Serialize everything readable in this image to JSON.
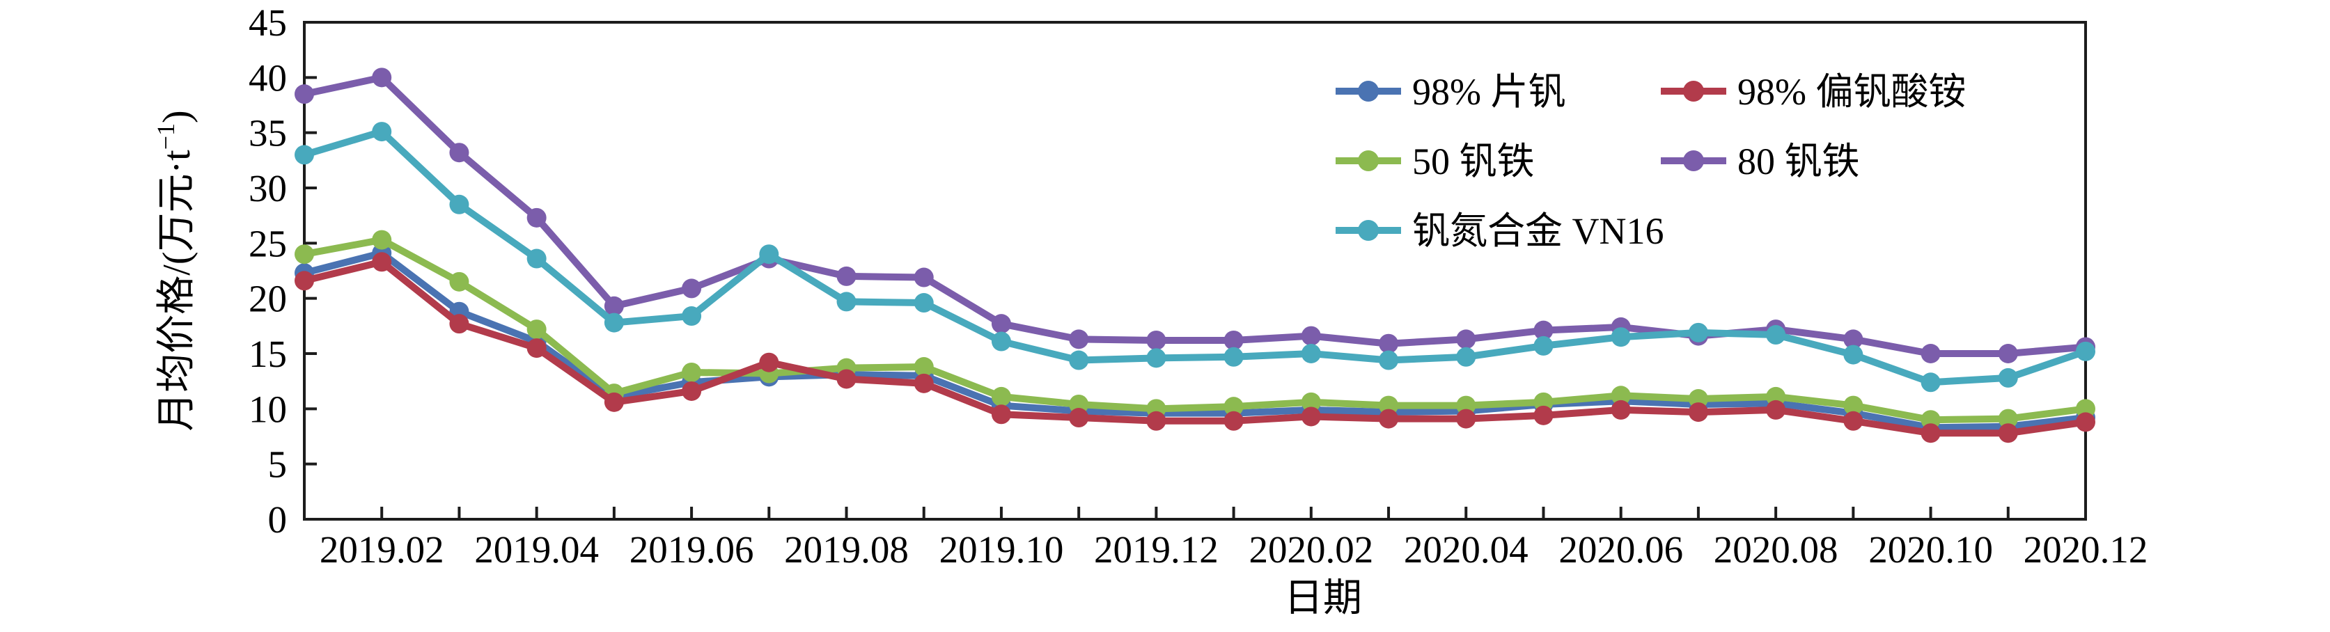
{
  "chart_data": {
    "type": "line",
    "xlabel": "日期",
    "ylabel": "月均价格/(万元·t⁻¹)",
    "ylabel_parts": {
      "main": "月均价格/(万元·t",
      "sup": "−1",
      "close": ")"
    },
    "ylim": [
      0,
      45
    ],
    "ytick_step": 5,
    "ytick_labels": [
      "0",
      "5",
      "10",
      "15",
      "20",
      "25",
      "30",
      "35",
      "40",
      "45"
    ],
    "grid": false,
    "legend_position": "inside-upper-right",
    "axis_color": "#1c1c1c",
    "x": [
      "2019.01",
      "2019.02",
      "2019.03",
      "2019.04",
      "2019.05",
      "2019.06",
      "2019.07",
      "2019.08",
      "2019.09",
      "2019.10",
      "2019.11",
      "2019.12",
      "2020.01",
      "2020.02",
      "2020.03",
      "2020.04",
      "2020.05",
      "2020.06",
      "2020.07",
      "2020.08",
      "2020.09",
      "2020.10",
      "2020.11",
      "2020.12"
    ],
    "x_labels_shown_every": "odd months (2019.02, 2019.04, … 2020.12)",
    "series": [
      {
        "id": "flake-v2o5-98",
        "name": "98% 片钒",
        "color": "#4a73b2",
        "values": [
          22.3,
          24.1,
          18.8,
          16.1,
          11.1,
          12.4,
          12.9,
          13.1,
          13.0,
          10.3,
          9.8,
          9.6,
          9.6,
          9.9,
          9.7,
          9.8,
          10.4,
          10.7,
          10.4,
          10.5,
          9.6,
          8.3,
          8.4,
          9.2
        ]
      },
      {
        "id": "ammonium-metavanadate-98",
        "name": "98% 偏钒酸铵",
        "color": "#b23b4b",
        "values": [
          21.6,
          23.3,
          17.7,
          15.5,
          10.6,
          11.6,
          14.2,
          12.7,
          12.3,
          9.5,
          9.2,
          8.9,
          8.9,
          9.3,
          9.1,
          9.1,
          9.4,
          9.9,
          9.7,
          9.9,
          8.9,
          7.8,
          7.8,
          8.8
        ]
      },
      {
        "id": "fev-50",
        "name": "50 钒铁",
        "color": "#8cba50",
        "values": [
          24.0,
          25.3,
          21.5,
          17.2,
          11.4,
          13.3,
          13.2,
          13.7,
          13.8,
          11.1,
          10.4,
          10.0,
          10.2,
          10.6,
          10.3,
          10.3,
          10.6,
          11.2,
          10.9,
          11.1,
          10.3,
          9.0,
          9.1,
          10.0
        ]
      },
      {
        "id": "fev-80",
        "name": "80 钒铁",
        "color": "#7b5dab",
        "values": [
          38.5,
          40.0,
          33.2,
          27.3,
          19.3,
          20.9,
          23.6,
          22.0,
          21.9,
          17.7,
          16.3,
          16.2,
          16.2,
          16.6,
          15.9,
          16.3,
          17.1,
          17.4,
          16.6,
          17.2,
          16.3,
          15.0,
          15.0,
          15.6
        ]
      },
      {
        "id": "vn16-alloy",
        "name": "钒氮合金 VN16",
        "color": "#48a9bd",
        "values": [
          33.0,
          35.1,
          28.5,
          23.6,
          17.8,
          18.4,
          24.0,
          19.7,
          19.6,
          16.1,
          14.4,
          14.6,
          14.7,
          15.0,
          14.4,
          14.7,
          15.7,
          16.5,
          16.9,
          16.7,
          14.9,
          12.4,
          12.8,
          15.2
        ]
      }
    ],
    "draw_order": [
      0,
      2,
      1,
      3,
      4
    ],
    "legend_grid": [
      [
        0,
        1
      ],
      [
        2,
        3
      ],
      [
        4
      ]
    ]
  }
}
